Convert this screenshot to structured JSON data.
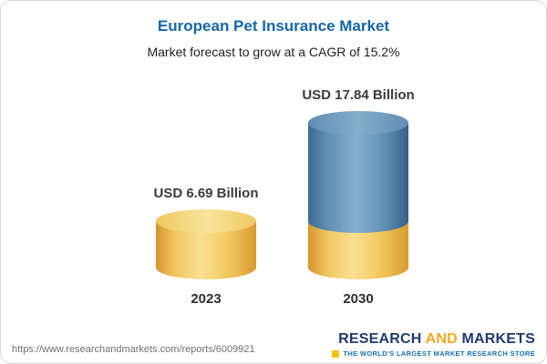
{
  "chart_data": {
    "type": "bar",
    "subtype": "cylinder-3d",
    "title": "European Pet Insurance Market",
    "subtitle": "Market forecast to grow at a CAGR of 15.2%",
    "categories": [
      "2023",
      "2030"
    ],
    "values": [
      6.69,
      17.84
    ],
    "unit": "USD Billion",
    "value_labels": [
      "USD 6.69 Billion",
      "USD 17.84 Billion"
    ],
    "cagr": "15.2%",
    "legend_position": "none",
    "grid": false,
    "colors": {
      "base_segment": "#F2C14E",
      "growth_segment": "#4E7FA8",
      "title": "#1566A9"
    },
    "note": "2030 bar stacks 2023 base value (yellow) with growth portion (blue)"
  },
  "footer": {
    "url": "https://www.researchandmarkets.com/reports/6009921",
    "logo": {
      "part1": "RESEARCH",
      "part2": "AND",
      "part3": "MARKETS",
      "tagline": "THE WORLD'S LARGEST MARKET RESEARCH STORE"
    }
  }
}
